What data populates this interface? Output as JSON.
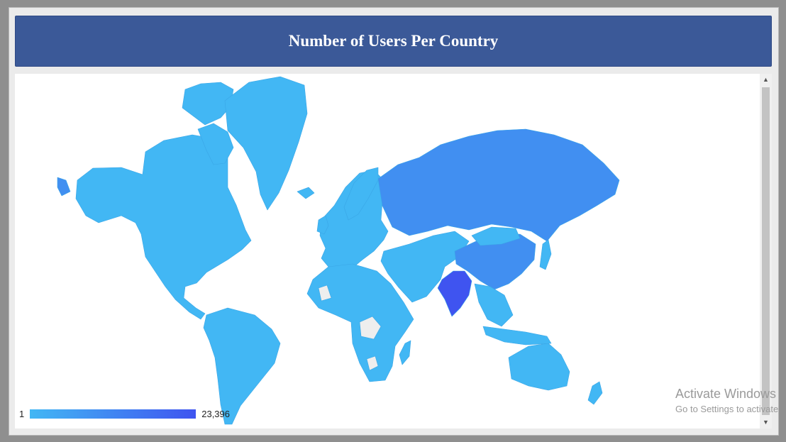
{
  "dialog": {
    "title": "Number of Users Per Country"
  },
  "map": {
    "type": "choropleth",
    "legend": {
      "min_label": "1",
      "max_label": "23,396",
      "min_color": "#42b7f4",
      "max_color": "#3f54f0"
    },
    "colors": {
      "ocean": "#ffffff",
      "no_data": "#eeeeee",
      "low": "#42b7f4",
      "medium": "#418ff1",
      "high": "#3f54f0",
      "border": "#3aa6e6"
    },
    "regions": [
      {
        "icon": "north-america-region",
        "level": "low"
      },
      {
        "icon": "greenland-region",
        "level": "low"
      },
      {
        "icon": "south-america-region",
        "level": "low"
      },
      {
        "icon": "europe-region",
        "level": "low"
      },
      {
        "icon": "africa-region",
        "level": "low"
      },
      {
        "icon": "russia-region",
        "level": "medium"
      },
      {
        "icon": "china-region",
        "level": "medium"
      },
      {
        "icon": "india-region",
        "level": "high"
      },
      {
        "icon": "australia-region",
        "level": "low"
      }
    ]
  },
  "scrollbar": {
    "up_icon": "chevron-up-icon",
    "down_icon": "chevron-down-icon"
  },
  "watermark": {
    "line1": "Activate Windows",
    "line2": "Go to Settings to activate"
  }
}
